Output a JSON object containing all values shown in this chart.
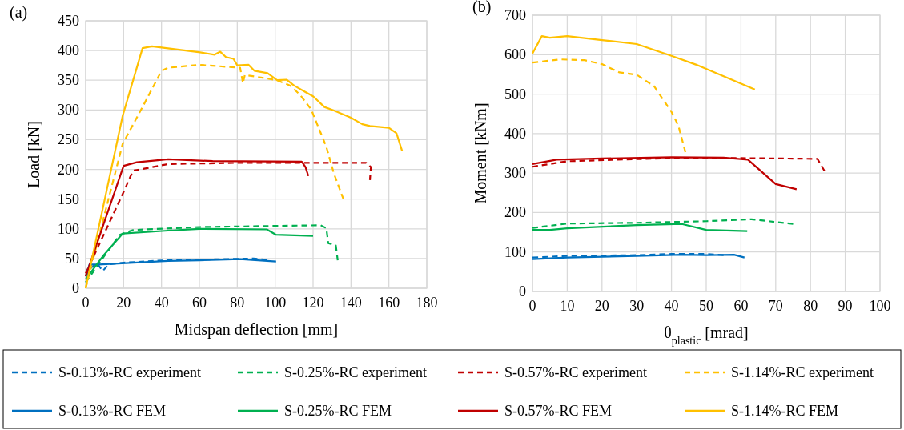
{
  "chart_data": [
    {
      "type": "line",
      "annotations": [
        "(a)"
      ],
      "xlabel": "Midspan deflection [mm]",
      "ylabel": "Load [kN]",
      "xlim": [
        0,
        180
      ],
      "xticks": [
        0,
        20,
        40,
        60,
        80,
        100,
        120,
        140,
        160,
        180
      ],
      "ylim": [
        0,
        450
      ],
      "yticks": [
        0,
        50,
        100,
        150,
        200,
        250,
        300,
        350,
        400,
        450
      ],
      "grid": true,
      "legend": "bottom",
      "series": [
        {
          "name": "S-0.13%-RC experiment",
          "color": "#0070c0",
          "line_style": "dashed",
          "x": [
            0,
            3,
            6,
            9,
            12,
            20,
            42,
            60,
            88.6,
            95.6
          ],
          "values": [
            20,
            35,
            42,
            29,
            40,
            43,
            47,
            48,
            50,
            48
          ]
        },
        {
          "name": "S-0.25%-RC experiment",
          "color": "#00b050",
          "line_style": "dashed",
          "x": [
            0,
            10,
            18,
            25,
            60,
            124,
            127,
            128,
            132,
            133
          ],
          "values": [
            10,
            55,
            90,
            98,
            103,
            106,
            101,
            76,
            72,
            47
          ]
        },
        {
          "name": "S-0.57%-RC experiment",
          "color": "#c00000",
          "line_style": "dashed",
          "x": [
            0,
            20,
            25,
            29,
            43.5,
            81.5,
            148,
            150.5,
            150
          ],
          "values": [
            25,
            162,
            198,
            200,
            209,
            211,
            211,
            204,
            182
          ]
        },
        {
          "name": "S-1.14%-RC experiment",
          "color": "#ffc000",
          "line_style": "dashed",
          "x": [
            0,
            19.5,
            30,
            40,
            43.5,
            60,
            81.5,
            83,
            84,
            101,
            108,
            113,
            119,
            127,
            131,
            136
          ],
          "values": [
            0,
            243,
            305,
            366,
            371,
            376,
            371,
            345,
            359,
            350,
            341,
            326,
            301,
            238,
            193,
            150
          ]
        },
        {
          "name": "S-0.13%-RC FEM",
          "color": "#0070c0",
          "line_style": "solid",
          "x": [
            0,
            2,
            6.8,
            43.5,
            60,
            81.5,
            100.5
          ],
          "values": [
            20,
            40,
            40,
            46,
            47,
            49,
            45
          ]
        },
        {
          "name": "S-0.25%-RC FEM",
          "color": "#00b050",
          "line_style": "solid",
          "x": [
            0,
            9.6,
            19.5,
            43.5,
            60,
            95.6,
            100.5,
            120
          ],
          "values": [
            15,
            56,
            92,
            97,
            100,
            99,
            90,
            88
          ]
        },
        {
          "name": "S-0.57%-RC FEM",
          "color": "#c00000",
          "line_style": "solid",
          "x": [
            0,
            20,
            27,
            43.5,
            67,
            114,
            116,
            117.5
          ],
          "values": [
            20,
            206,
            212,
            217,
            214,
            213,
            204,
            189
          ]
        },
        {
          "name": "S-1.14%-RC FEM",
          "color": "#ffc000",
          "line_style": "solid",
          "x": [
            0,
            19.5,
            30,
            35,
            60.4,
            68,
            71,
            74,
            78,
            80,
            86,
            89,
            96,
            101,
            106,
            110,
            116,
            120,
            126,
            131,
            140,
            146,
            150,
            160,
            164,
            167
          ],
          "values": [
            0,
            290,
            404,
            407,
            397,
            393,
            398,
            389,
            386,
            375,
            376,
            366,
            362,
            350,
            351,
            341,
            330,
            323,
            305,
            299,
            287,
            276,
            273,
            270,
            261,
            231
          ]
        }
      ]
    },
    {
      "type": "line",
      "annotations": [
        "(b)"
      ],
      "xlabel": "θ$_{plastic}$ [mrad]",
      "ylabel": "Moment [kNm]",
      "xlim": [
        0,
        100
      ],
      "xticks": [
        0,
        10,
        20,
        30,
        40,
        50,
        60,
        70,
        80,
        90,
        100
      ],
      "ylim": [
        0,
        700
      ],
      "yticks": [
        0,
        100,
        200,
        300,
        400,
        500,
        600,
        700
      ],
      "grid": true,
      "series": [
        {
          "color": "#0070c0",
          "line_style": "dashed",
          "x": [
            0,
            10,
            30,
            40,
            50,
            55
          ],
          "values": [
            86,
            90,
            92,
            95,
            95,
            92
          ]
        },
        {
          "color": "#00b050",
          "line_style": "dashed",
          "x": [
            0,
            10,
            30,
            50,
            63,
            75
          ],
          "values": [
            161,
            172,
            174,
            178,
            183,
            171
          ]
        },
        {
          "color": "#c00000",
          "line_style": "dashed",
          "x": [
            0,
            10,
            40,
            60,
            82,
            84
          ],
          "values": [
            316,
            330,
            338,
            338,
            336,
            306
          ]
        },
        {
          "color": "#ffc000",
          "line_style": "dashed",
          "x": [
            0,
            5,
            8,
            15,
            20,
            25,
            30,
            35,
            40,
            42,
            44
          ],
          "values": [
            580,
            585,
            588,
            586,
            576,
            555,
            549,
            520,
            455,
            420,
            353
          ]
        },
        {
          "color": "#0070c0",
          "line_style": "solid",
          "x": [
            0,
            10,
            30,
            43,
            50,
            58,
            61
          ],
          "values": [
            82,
            86,
            90,
            93,
            92,
            93,
            86
          ]
        },
        {
          "color": "#00b050",
          "line_style": "solid",
          "x": [
            0,
            5,
            10,
            30,
            43,
            50,
            61.8
          ],
          "values": [
            156,
            156,
            160,
            168,
            171,
            156,
            153
          ]
        },
        {
          "color": "#c00000",
          "line_style": "solid",
          "x": [
            0,
            7,
            20,
            40,
            55,
            62,
            70,
            76
          ],
          "values": [
            323,
            334,
            337,
            340,
            339,
            334,
            272,
            259
          ]
        },
        {
          "color": "#ffc000",
          "line_style": "solid",
          "x": [
            0,
            2.7,
            5,
            10,
            20,
            30,
            40,
            47,
            64
          ],
          "values": [
            603,
            647,
            643,
            647,
            637,
            627,
            597,
            575,
            512
          ]
        }
      ]
    }
  ]
}
